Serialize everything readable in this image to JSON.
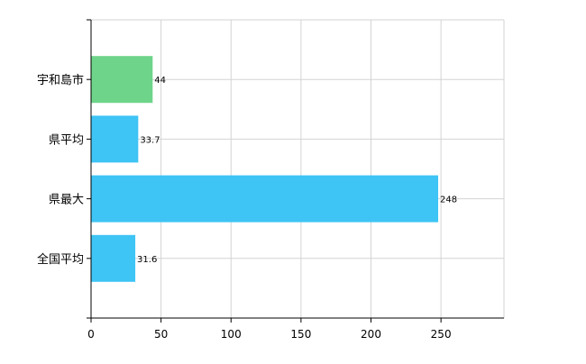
{
  "chart_data": {
    "type": "bar",
    "orientation": "horizontal",
    "categories": [
      "宇和島市",
      "県平均",
      "県最大",
      "全国平均"
    ],
    "values": [
      44,
      33.7,
      248,
      31.6
    ],
    "data_labels": [
      "44",
      "33.7",
      "248",
      "31.6"
    ],
    "bar_colors": [
      "#6dd48a",
      "#3ec4f5",
      "#3ec4f5",
      "#3ec4f5"
    ],
    "xlim": [
      0,
      295
    ],
    "x_ticks": [
      0,
      50,
      100,
      150,
      200,
      250
    ],
    "x_tick_labels": [
      "0",
      "50",
      "100",
      "150",
      "200",
      "250"
    ],
    "grid": true,
    "title": "",
    "xlabel": "",
    "ylabel": ""
  }
}
